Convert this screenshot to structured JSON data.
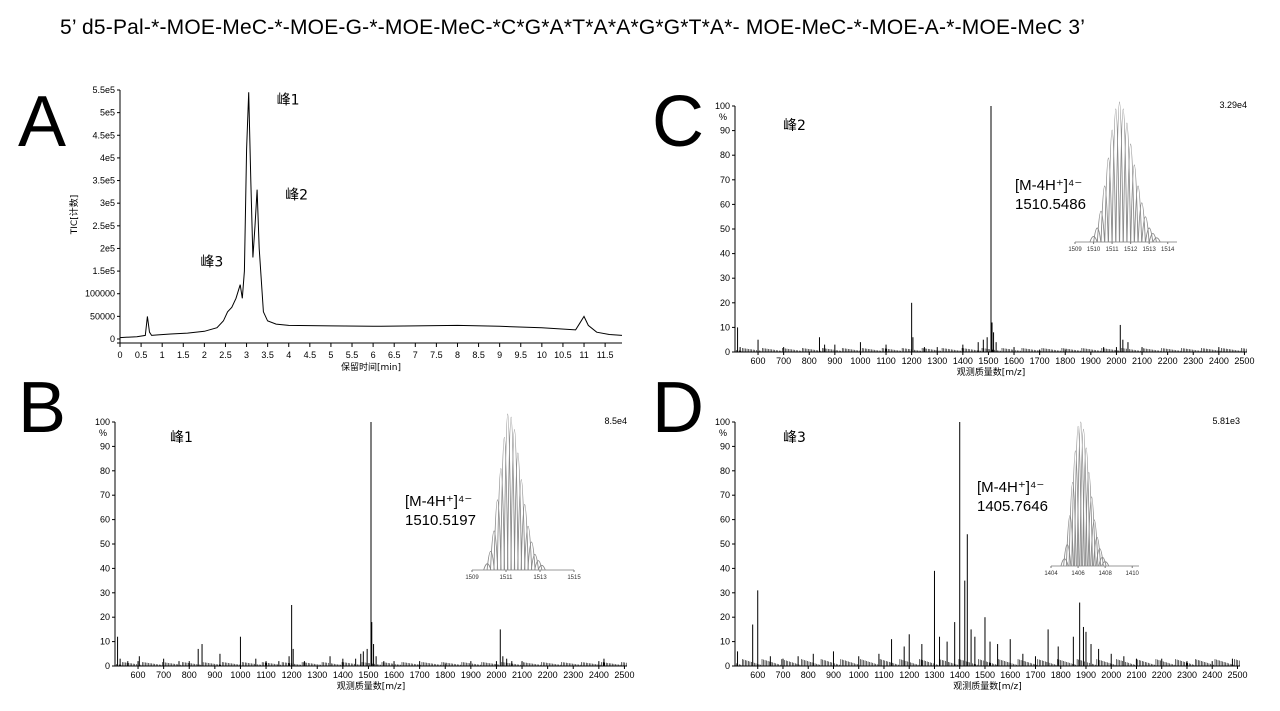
{
  "sequence": "5’ d5-Pal-*-MOE-MeC-*-MOE-G-*-MOE-MeC-*C*G*A*T*A*A*G*G*T*A*- MOE-MeC-*-MOE-A-*-MOE-MeC 3’",
  "chart_data": [
    {
      "panel": "A",
      "type": "line",
      "xlabel": "保留时间[min]",
      "ylabel": "TIC[计数]",
      "xlim": [
        0,
        11.9
      ],
      "ylim": [
        0,
        550000
      ],
      "x_ticks": [
        "0",
        "0.5",
        "1",
        "1.5",
        "2",
        "2.5",
        "3",
        "3.5",
        "4",
        "4.5",
        "5",
        "5.5",
        "6",
        "6.5",
        "7",
        "7.5",
        "8",
        "8.5",
        "9",
        "9.5",
        "10",
        "10.5",
        "11",
        "11.5"
      ],
      "y_ticks": [
        "0",
        "50000",
        "100000",
        "1.5e5",
        "2e5",
        "2.5e5",
        "3e5",
        "3.5e5",
        "4e5",
        "4.5e5",
        "5e5",
        "5.5e5"
      ],
      "annotations": [
        {
          "text": "峰1",
          "x": 3.05,
          "y": 545000
        },
        {
          "text": "峰2",
          "x": 3.25,
          "y": 330000
        },
        {
          "text": "峰3",
          "x": 2.9,
          "y": 120000
        }
      ],
      "series": [
        {
          "x": [
            0,
            0.4,
            0.6,
            0.65,
            0.7,
            0.75,
            0.9,
            1.2,
            1.6,
            2.0,
            2.3,
            2.45,
            2.55,
            2.65,
            2.75,
            2.85,
            2.9,
            2.95,
            3.0,
            3.05,
            3.1,
            3.15,
            3.2,
            3.25,
            3.3,
            3.4,
            3.5,
            3.7,
            4.0,
            5.0,
            6.0,
            7.0,
            8.0,
            9.0,
            10.0,
            10.8,
            10.9,
            11.0,
            11.1,
            11.3,
            11.6,
            11.9
          ],
          "y": [
            3000,
            5000,
            8000,
            50000,
            15000,
            8000,
            9000,
            11000,
            13000,
            17000,
            25000,
            40000,
            60000,
            70000,
            90000,
            120000,
            90000,
            150000,
            420000,
            545000,
            350000,
            180000,
            250000,
            330000,
            200000,
            60000,
            40000,
            33000,
            30000,
            29000,
            28000,
            29000,
            30000,
            28000,
            25000,
            20000,
            35000,
            50000,
            30000,
            15000,
            10000,
            8000
          ]
        }
      ]
    },
    {
      "panel": "B",
      "type": "bar",
      "annotation": "峰1",
      "xlabel": "观测质量数[m/z]",
      "ylabel": "%",
      "scale_label": "8.5e4",
      "xlim": [
        510,
        2510
      ],
      "ylim": [
        0,
        100
      ],
      "x_ticks": [
        "600",
        "700",
        "800",
        "900",
        "1000",
        "1100",
        "1200",
        "1300",
        "1400",
        "1500",
        "1600",
        "1700",
        "1800",
        "1900",
        "2000",
        "2100",
        "2200",
        "2300",
        "2400",
        "2500"
      ],
      "y_ticks": [
        "0",
        "10",
        "20",
        "30",
        "40",
        "50",
        "60",
        "70",
        "80",
        "90",
        "100"
      ],
      "ion_label": "[M-4H⁺]⁴⁻",
      "ion_mz": "1510.5197",
      "peaks": [
        [
          520,
          12
        ],
        [
          530,
          3
        ],
        [
          560,
          2
        ],
        [
          600,
          2
        ],
        [
          605,
          4
        ],
        [
          700,
          3
        ],
        [
          760,
          2
        ],
        [
          800,
          2
        ],
        [
          835,
          7
        ],
        [
          850,
          9
        ],
        [
          920,
          5
        ],
        [
          1000,
          12
        ],
        [
          1060,
          3
        ],
        [
          1100,
          2
        ],
        [
          1150,
          2
        ],
        [
          1190,
          4
        ],
        [
          1200,
          25
        ],
        [
          1206,
          7
        ],
        [
          1250,
          2
        ],
        [
          1350,
          4
        ],
        [
          1400,
          3
        ],
        [
          1450,
          3
        ],
        [
          1470,
          5
        ],
        [
          1480,
          6
        ],
        [
          1495,
          7
        ],
        [
          1510,
          100
        ],
        [
          1513,
          18
        ],
        [
          1520,
          9
        ],
        [
          1530,
          4
        ],
        [
          1560,
          2
        ],
        [
          1600,
          2
        ],
        [
          1700,
          2
        ],
        [
          1800,
          1
        ],
        [
          1900,
          2
        ],
        [
          2000,
          2
        ],
        [
          2015,
          15
        ],
        [
          2025,
          4
        ],
        [
          2040,
          3
        ],
        [
          2060,
          2
        ],
        [
          2100,
          2
        ],
        [
          2400,
          2
        ],
        [
          2420,
          3
        ]
      ],
      "inset": {
        "x_ticks": [
          "1509",
          "1511",
          "1513",
          "1515"
        ],
        "xlim": [
          1509,
          1515
        ],
        "peaks": [
          [
            1509.9,
            4
          ],
          [
            1510.1,
            12
          ],
          [
            1510.3,
            25
          ],
          [
            1510.5,
            45
          ],
          [
            1510.7,
            65
          ],
          [
            1510.9,
            85
          ],
          [
            1511.1,
            100
          ],
          [
            1511.3,
            98
          ],
          [
            1511.5,
            90
          ],
          [
            1511.7,
            75
          ],
          [
            1511.9,
            58
          ],
          [
            1512.1,
            42
          ],
          [
            1512.3,
            28
          ],
          [
            1512.5,
            18
          ],
          [
            1512.7,
            10
          ],
          [
            1512.9,
            6
          ],
          [
            1513.1,
            3
          ]
        ]
      }
    },
    {
      "panel": "C",
      "type": "bar",
      "annotation": "峰2",
      "xlabel": "观测质量数[m/z]",
      "ylabel": "%",
      "scale_label": "3.29e4",
      "xlim": [
        510,
        2510
      ],
      "ylim": [
        0,
        100
      ],
      "x_ticks": [
        "600",
        "700",
        "800",
        "900",
        "1000",
        "1100",
        "1200",
        "1300",
        "1400",
        "1500",
        "1600",
        "1700",
        "1800",
        "1900",
        "2000",
        "2100",
        "2200",
        "2300",
        "2400",
        "2500"
      ],
      "y_ticks": [
        "0",
        "10",
        "20",
        "30",
        "40",
        "50",
        "60",
        "70",
        "80",
        "90",
        "100"
      ],
      "ion_label": "[M-4H⁺]⁴⁻",
      "ion_mz": "1510.5486",
      "peaks": [
        [
          520,
          10
        ],
        [
          530,
          2
        ],
        [
          600,
          5
        ],
        [
          700,
          2
        ],
        [
          840,
          6
        ],
        [
          860,
          3
        ],
        [
          900,
          3
        ],
        [
          1000,
          4
        ],
        [
          1100,
          3
        ],
        [
          1200,
          20
        ],
        [
          1205,
          6
        ],
        [
          1250,
          2
        ],
        [
          1300,
          2
        ],
        [
          1400,
          3
        ],
        [
          1460,
          4
        ],
        [
          1480,
          5
        ],
        [
          1495,
          6
        ],
        [
          1510,
          100
        ],
        [
          1514,
          12
        ],
        [
          1520,
          8
        ],
        [
          1530,
          4
        ],
        [
          1600,
          2
        ],
        [
          1700,
          1
        ],
        [
          1800,
          1
        ],
        [
          1950,
          2
        ],
        [
          2000,
          2
        ],
        [
          2015,
          11
        ],
        [
          2025,
          5
        ],
        [
          2045,
          4
        ],
        [
          2100,
          2
        ],
        [
          2400,
          2
        ]
      ],
      "inset": {
        "x_ticks": [
          "1509",
          "1510",
          "1511",
          "1512",
          "1513",
          "1514"
        ],
        "xlim": [
          1509,
          1514.5
        ],
        "peaks": [
          [
            1510.0,
            4
          ],
          [
            1510.2,
            10
          ],
          [
            1510.4,
            22
          ],
          [
            1510.6,
            40
          ],
          [
            1510.8,
            60
          ],
          [
            1511.0,
            80
          ],
          [
            1511.2,
            95
          ],
          [
            1511.4,
            100
          ],
          [
            1511.6,
            95
          ],
          [
            1511.8,
            85
          ],
          [
            1512.0,
            70
          ],
          [
            1512.2,
            55
          ],
          [
            1512.4,
            40
          ],
          [
            1512.6,
            28
          ],
          [
            1512.8,
            18
          ],
          [
            1513.0,
            10
          ],
          [
            1513.2,
            6
          ],
          [
            1513.4,
            3
          ]
        ]
      }
    },
    {
      "panel": "D",
      "type": "bar",
      "annotation": "峰3",
      "xlabel": "观测质量数[m/z]",
      "ylabel": "%",
      "scale_label": "5.81e3",
      "xlim": [
        510,
        2510
      ],
      "ylim": [
        0,
        100
      ],
      "x_ticks": [
        "600",
        "700",
        "800",
        "900",
        "1000",
        "1100",
        "1200",
        "1300",
        "1400",
        "1500",
        "1600",
        "1700",
        "1800",
        "1900",
        "2000",
        "2100",
        "2200",
        "2300",
        "2400",
        "2500"
      ],
      "y_ticks": [
        "0",
        "10",
        "20",
        "30",
        "40",
        "50",
        "60",
        "70",
        "80",
        "90",
        "100"
      ],
      "ion_label": "[M-4H⁺]⁴⁻",
      "ion_mz": "1405.7646",
      "peaks": [
        [
          520,
          6
        ],
        [
          580,
          17
        ],
        [
          600,
          31
        ],
        [
          650,
          4
        ],
        [
          700,
          3
        ],
        [
          760,
          4
        ],
        [
          820,
          5
        ],
        [
          900,
          6
        ],
        [
          1000,
          4
        ],
        [
          1080,
          5
        ],
        [
          1130,
          11
        ],
        [
          1180,
          8
        ],
        [
          1200,
          13
        ],
        [
          1250,
          9
        ],
        [
          1300,
          39
        ],
        [
          1320,
          12
        ],
        [
          1350,
          10
        ],
        [
          1380,
          18
        ],
        [
          1400,
          100
        ],
        [
          1420,
          35
        ],
        [
          1430,
          54
        ],
        [
          1445,
          15
        ],
        [
          1460,
          12
        ],
        [
          1500,
          20
        ],
        [
          1520,
          10
        ],
        [
          1550,
          9
        ],
        [
          1600,
          11
        ],
        [
          1650,
          5
        ],
        [
          1700,
          4
        ],
        [
          1750,
          15
        ],
        [
          1790,
          8
        ],
        [
          1850,
          12
        ],
        [
          1875,
          26
        ],
        [
          1890,
          16
        ],
        [
          1900,
          14
        ],
        [
          1920,
          9
        ],
        [
          1950,
          7
        ],
        [
          2000,
          5
        ],
        [
          2050,
          4
        ],
        [
          2100,
          3
        ],
        [
          2200,
          3
        ],
        [
          2300,
          2
        ],
        [
          2400,
          2
        ],
        [
          2480,
          3
        ]
      ],
      "inset": {
        "x_ticks": [
          "1404",
          "1406",
          "1408",
          "1410"
        ],
        "xlim": [
          1404,
          1410.5
        ],
        "peaks": [
          [
            1405.0,
            5
          ],
          [
            1405.2,
            15
          ],
          [
            1405.4,
            35
          ],
          [
            1405.6,
            58
          ],
          [
            1405.8,
            80
          ],
          [
            1406.0,
            97
          ],
          [
            1406.2,
            100
          ],
          [
            1406.4,
            95
          ],
          [
            1406.6,
            82
          ],
          [
            1406.8,
            65
          ],
          [
            1407.0,
            48
          ],
          [
            1407.2,
            32
          ],
          [
            1407.4,
            20
          ],
          [
            1407.6,
            12
          ],
          [
            1407.8,
            6
          ],
          [
            1408.0,
            3
          ]
        ]
      }
    }
  ]
}
